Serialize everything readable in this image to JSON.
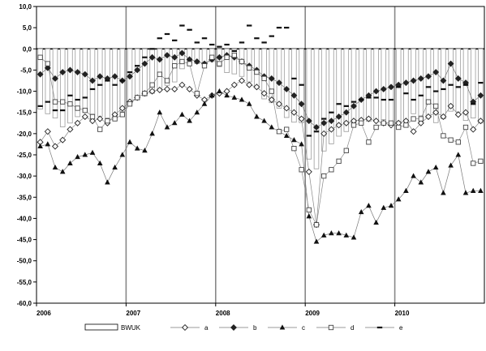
{
  "chart_data": {
    "type": "line",
    "title": "",
    "xlabel": "",
    "ylabel": "",
    "ylim": [
      -60,
      10
    ],
    "ytick_step": 5,
    "ytick_labels": [
      "10,0",
      "5,0",
      "0,0",
      "-5,0",
      "-10,0",
      "-15,0",
      "-20,0",
      "-25,0",
      "-30,0",
      "-35,0",
      "-40,0",
      "-45,0",
      "-50,0",
      "-55,0",
      "-60,0"
    ],
    "x_labels": [
      "2006",
      "2007",
      "2008",
      "2009",
      "2010"
    ],
    "periods_per_year": 12,
    "n_periods": 60,
    "grid": "horizontal-none; vertical lines at year starts",
    "legend_position": "bottom",
    "legend": {
      "bar_label": "BWUK",
      "series_labels": [
        "a",
        "b",
        "c",
        "d",
        "e"
      ]
    },
    "bar_series": {
      "name": "BWUK",
      "values": [
        -14.2,
        -15.3,
        -16.3,
        -18.4,
        -17.5,
        -16.0,
        -15.0,
        -15.4,
        -15.9,
        -16.3,
        -16.1,
        -14.8,
        -12.8,
        -12.0,
        -11.1,
        -10.5,
        -9.7,
        -8.6,
        -7.8,
        -4.7,
        -3.4,
        -3.5,
        -3.2,
        -3.0,
        -4.2,
        -5.6,
        -5.9,
        -6.5,
        -7.8,
        -9.1,
        -11.8,
        -12.7,
        -14.0,
        -16.2,
        -17.3,
        -17.4,
        -26.0,
        -28.3,
        -24.1,
        -22.4,
        -20.6,
        -19.5,
        -18.1,
        -17.7,
        -17.1,
        -16.9,
        -16.7,
        -17.6,
        -17.2,
        -16.8,
        -15.3,
        -15.8,
        -15.9,
        -17.4,
        -16.5,
        -14.7,
        -14.9,
        -16.9,
        -16.3,
        -17.5
      ]
    },
    "series": [
      {
        "name": "a",
        "values": [
          -22.0,
          -19.5,
          -23.0,
          -21.5,
          -19.0,
          -17.5,
          -16.0,
          -17.0,
          -16.5,
          -17.5,
          -15.5,
          -14.0,
          -12.5,
          -11.5,
          -10.5,
          -10.0,
          -9.7,
          -9.5,
          -9.5,
          -8.5,
          -9.5,
          -11.0,
          -12.0,
          -11.0,
          -10.5,
          -10.0,
          -8.5,
          -7.5,
          -8.5,
          -9.0,
          -10.5,
          -12.0,
          -13.0,
          -14.0,
          -15.0,
          -16.5,
          -29.0,
          -41.5,
          -20.0,
          -19.0,
          -18.0,
          -17.5,
          -17.0,
          -16.8,
          -16.5,
          -17.0,
          -17.5,
          -18.0,
          -17.5,
          -17.0,
          -19.5,
          -17.5,
          -16.0,
          -15.0,
          -16.0,
          -13.5,
          -15.5,
          -15.0,
          -19.0,
          -17.0
        ]
      },
      {
        "name": "b",
        "values": [
          -6.0,
          -4.5,
          -7.0,
          -5.5,
          -5.0,
          -5.5,
          -6.0,
          -7.5,
          -6.5,
          -7.0,
          -6.5,
          -7.5,
          -6.5,
          -5.0,
          -3.5,
          -2.0,
          -2.5,
          -1.5,
          -2.0,
          -1.0,
          -2.5,
          -3.0,
          -3.5,
          -2.5,
          -2.0,
          -1.5,
          -2.0,
          -3.0,
          -4.0,
          -5.0,
          -6.5,
          -7.0,
          -8.0,
          -9.5,
          -11.0,
          -13.0,
          -17.0,
          -18.5,
          -17.5,
          -17.0,
          -16.0,
          -15.0,
          -13.5,
          -12.0,
          -11.0,
          -10.0,
          -9.5,
          -9.0,
          -8.5,
          -8.0,
          -7.5,
          -7.0,
          -6.5,
          -5.5,
          -7.5,
          -3.5,
          -7.0,
          -8.0,
          -12.5,
          -11.0
        ]
      },
      {
        "name": "c",
        "values": [
          -23.0,
          -22.5,
          -28.0,
          -29.0,
          -27.0,
          -25.5,
          -25.0,
          -24.5,
          -27.0,
          -31.5,
          -28.0,
          -25.0,
          -22.0,
          -23.5,
          -24.0,
          -20.0,
          -15.0,
          -18.5,
          -17.5,
          -15.5,
          -17.0,
          -15.0,
          -13.0,
          -11.0,
          -10.0,
          -11.0,
          -11.5,
          -12.0,
          -13.0,
          -16.0,
          -17.0,
          -18.5,
          -19.5,
          -20.5,
          -21.5,
          -22.5,
          -39.5,
          -45.5,
          -44.0,
          -43.5,
          -43.5,
          -44.0,
          -44.5,
          -38.5,
          -37.0,
          -41.0,
          -37.5,
          -37.0,
          -35.5,
          -33.5,
          -30.0,
          -31.5,
          -29.0,
          -28.0,
          -34.0,
          -27.5,
          -25.0,
          -34.0,
          -33.5,
          -33.5
        ]
      },
      {
        "name": "d",
        "values": [
          -2.0,
          -3.5,
          -12.5,
          -12.5,
          -13.0,
          -14.0,
          -14.5,
          -16.0,
          -19.0,
          -17.0,
          -16.5,
          -15.5,
          -13.0,
          -11.5,
          -10.5,
          -8.5,
          -6.0,
          -7.5,
          -4.0,
          -3.0,
          -3.5,
          -10.5,
          -4.0,
          -2.0,
          -3.5,
          -2.0,
          -1.5,
          -3.0,
          -4.5,
          -5.5,
          -7.0,
          -10.0,
          -19.5,
          -19.0,
          -23.5,
          -28.5,
          -38.0,
          -41.5,
          -30.0,
          -28.5,
          -26.5,
          -24.0,
          -18.0,
          -17.5,
          -22.0,
          -18.5,
          -17.5,
          -17.5,
          -18.5,
          -18.0,
          -16.5,
          -16.5,
          -12.5,
          -13.5,
          -20.5,
          -21.5,
          -22.0,
          -18.5,
          -27.0,
          -26.5
        ]
      },
      {
        "name": "e",
        "values": [
          -13.5,
          -12.5,
          -14.5,
          -14.5,
          -11.0,
          -12.0,
          -11.5,
          -9.5,
          -8.5,
          -7.5,
          -8.5,
          -7.5,
          -5.5,
          -4.0,
          -2.0,
          0.0,
          2.5,
          3.5,
          2.0,
          5.5,
          4.5,
          1.5,
          2.5,
          1.0,
          0.5,
          1.0,
          -0.5,
          1.5,
          5.5,
          2.5,
          1.5,
          3.0,
          5.0,
          5.0,
          -7.0,
          -8.5,
          -20.5,
          -19.5,
          -16.5,
          -15.0,
          -13.0,
          -13.5,
          -12.5,
          -12.0,
          -11.5,
          -11.5,
          -12.0,
          -12.0,
          -9.0,
          -10.5,
          -12.0,
          -11.0,
          -9.0,
          -10.0,
          -9.5,
          -8.5,
          -9.0,
          -8.5,
          -13.0,
          -8.0
        ]
      }
    ]
  }
}
